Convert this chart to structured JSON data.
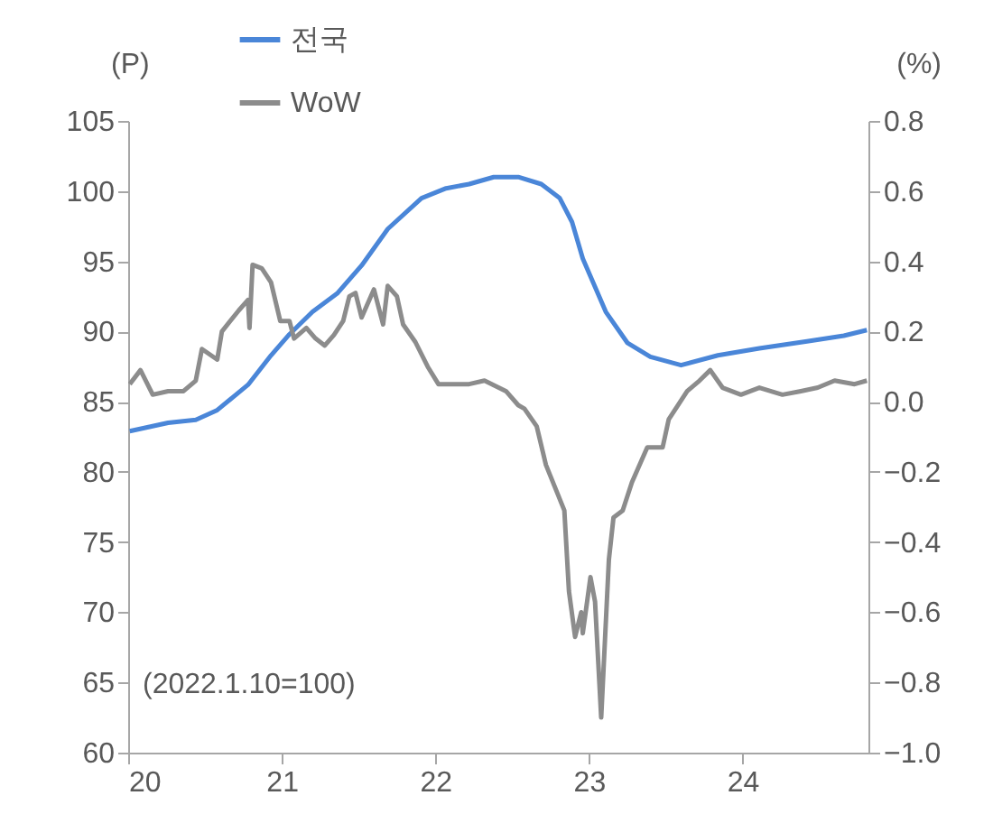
{
  "chart_data": {
    "type": "line",
    "ylabel": "(P)",
    "y2label": "(%)",
    "annotations": [
      "(2022.1.10=100)"
    ],
    "legend": "top",
    "xlim": [
      2020,
      2024.82
    ],
    "xticks": [
      {
        "value": 2020,
        "label": "20"
      },
      {
        "value": 2021,
        "label": "21"
      },
      {
        "value": 2022,
        "label": "22"
      },
      {
        "value": 2023,
        "label": "23"
      },
      {
        "value": 2024,
        "label": "24"
      }
    ],
    "ylim": [
      60,
      105
    ],
    "yticks": [
      60,
      65,
      70,
      75,
      80,
      85,
      90,
      95,
      100,
      105
    ],
    "y2lim": [
      -1.0,
      0.8
    ],
    "y2ticks": [
      {
        "value": -1.0,
        "label": "−1.0"
      },
      {
        "value": -0.8,
        "label": "−0.8"
      },
      {
        "value": -0.6,
        "label": "−0.6"
      },
      {
        "value": -0.4,
        "label": "−0.4"
      },
      {
        "value": -0.2,
        "label": "−0.2"
      },
      {
        "value": 0,
        "label": "0.0"
      },
      {
        "value": 0.2,
        "label": "0.2"
      },
      {
        "value": 0.4,
        "label": "0.4"
      },
      {
        "value": 0.6,
        "label": "0.6"
      },
      {
        "value": 0.8,
        "label": "0.8"
      }
    ],
    "series": [
      {
        "name": "전국",
        "color": "#4a86d8",
        "x": [
          2020.01,
          2020.26,
          2020.44,
          2020.58,
          2020.78,
          2020.93,
          2021.05,
          2021.2,
          2021.36,
          2021.52,
          2021.69,
          2021.91,
          2022.07,
          2022.22,
          2022.38,
          2022.54,
          2022.69,
          2022.81,
          2022.89,
          2022.96,
          2023.11,
          2023.25,
          2023.4,
          2023.6,
          2023.84,
          2024.11,
          2024.42,
          2024.66,
          2024.81
        ],
        "values": [
          82.9,
          83.5,
          83.7,
          84.4,
          86.2,
          88.3,
          89.8,
          91.4,
          92.7,
          94.7,
          97.3,
          99.5,
          100.2,
          100.5,
          101.0,
          101.0,
          100.5,
          99.5,
          97.8,
          95.2,
          91.4,
          89.2,
          88.2,
          87.6,
          88.3,
          88.8,
          89.3,
          89.7,
          90.1
        ]
      },
      {
        "name": "WoW",
        "color": "#8c8c8c",
        "axis": "y2",
        "x": [
          2020.01,
          2020.08,
          2020.16,
          2020.26,
          2020.36,
          2020.44,
          2020.48,
          2020.58,
          2020.61,
          2020.72,
          2020.78,
          2020.79,
          2020.81,
          2020.87,
          2020.93,
          2020.99,
          2021.05,
          2021.08,
          2021.16,
          2021.22,
          2021.28,
          2021.34,
          2021.4,
          2021.44,
          2021.48,
          2021.52,
          2021.6,
          2021.66,
          2021.69,
          2021.75,
          2021.79,
          2021.87,
          2021.95,
          2022.02,
          2022.13,
          2022.22,
          2022.32,
          2022.46,
          2022.54,
          2022.58,
          2022.66,
          2022.72,
          2022.84,
          2022.87,
          2022.91,
          2022.95,
          2022.96,
          2023.01,
          2023.04,
          2023.08,
          2023.13,
          2023.16,
          2023.22,
          2023.28,
          2023.38,
          2023.48,
          2023.52,
          2023.64,
          2023.72,
          2023.79,
          2023.87,
          2023.99,
          2024.11,
          2024.26,
          2024.38,
          2024.49,
          2024.6,
          2024.73,
          2024.81
        ],
        "values": [
          0.05,
          0.09,
          0.02,
          0.03,
          0.03,
          0.06,
          0.15,
          0.12,
          0.2,
          0.26,
          0.29,
          0.21,
          0.39,
          0.38,
          0.34,
          0.23,
          0.23,
          0.18,
          0.21,
          0.18,
          0.16,
          0.19,
          0.23,
          0.3,
          0.31,
          0.24,
          0.32,
          0.22,
          0.33,
          0.3,
          0.22,
          0.17,
          0.1,
          0.05,
          0.05,
          0.05,
          0.06,
          0.03,
          -0.01,
          -0.02,
          -0.07,
          -0.18,
          -0.31,
          -0.54,
          -0.67,
          -0.6,
          -0.66,
          -0.5,
          -0.57,
          -0.9,
          -0.45,
          -0.33,
          -0.31,
          -0.23,
          -0.13,
          -0.13,
          -0.05,
          0.03,
          0.06,
          0.09,
          0.04,
          0.02,
          0.04,
          0.02,
          0.03,
          0.04,
          0.06,
          0.05,
          0.06
        ]
      }
    ]
  }
}
